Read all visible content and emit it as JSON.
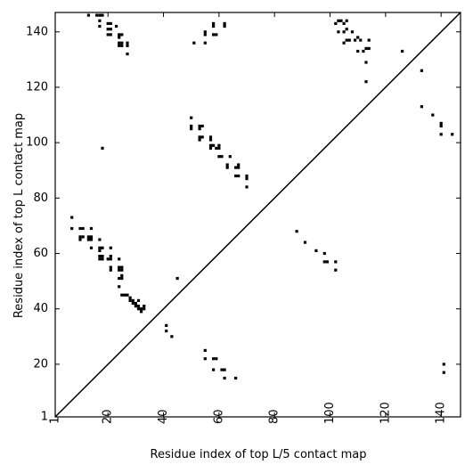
{
  "chart_data": {
    "type": "scatter",
    "title": "",
    "xlabel": "Residue index of top L/5 contact map",
    "ylabel": "Residue index of top L contact map",
    "xlim": [
      1,
      147
    ],
    "ylim": [
      1,
      147
    ],
    "xticks": [
      1,
      20,
      40,
      60,
      80,
      100,
      120,
      140
    ],
    "yticks": [
      1,
      20,
      40,
      60,
      80,
      100,
      120,
      140
    ],
    "x_tick_rotation": -90,
    "diagonal": true,
    "marker": "square",
    "point_color": "#000000",
    "upper_points": [
      [
        102,
        143
      ],
      [
        103,
        144
      ],
      [
        104,
        144
      ],
      [
        105,
        143
      ],
      [
        106,
        144
      ],
      [
        106,
        141
      ],
      [
        105,
        140
      ],
      [
        103,
        140
      ],
      [
        108,
        140
      ],
      [
        110,
        138
      ],
      [
        109,
        137
      ],
      [
        111,
        137
      ],
      [
        106,
        137
      ],
      [
        105,
        136
      ],
      [
        107,
        137
      ],
      [
        114,
        137
      ],
      [
        113,
        134
      ],
      [
        114,
        134
      ],
      [
        112,
        133
      ],
      [
        110,
        133
      ],
      [
        113,
        129
      ],
      [
        126,
        133
      ],
      [
        133,
        126
      ],
      [
        113,
        122
      ],
      [
        133,
        113
      ],
      [
        137,
        110
      ],
      [
        140,
        107
      ],
      [
        140,
        106
      ],
      [
        144,
        103
      ],
      [
        140,
        103
      ],
      [
        88,
        68
      ],
      [
        91,
        64
      ],
      [
        95,
        61
      ],
      [
        98,
        60
      ],
      [
        98,
        57
      ],
      [
        99,
        57
      ],
      [
        102,
        57
      ],
      [
        102,
        54
      ],
      [
        141,
        20
      ],
      [
        141,
        17
      ]
    ],
    "lower_points": [
      [
        13,
        146
      ],
      [
        16,
        146
      ],
      [
        17,
        146
      ],
      [
        18,
        146
      ],
      [
        17,
        144
      ],
      [
        17,
        142
      ],
      [
        20,
        143
      ],
      [
        21,
        143
      ],
      [
        20,
        141
      ],
      [
        21,
        141
      ],
      [
        23,
        142
      ],
      [
        20,
        139
      ],
      [
        21,
        139
      ],
      [
        24,
        139
      ],
      [
        25,
        139
      ],
      [
        24,
        138
      ],
      [
        24,
        136
      ],
      [
        25,
        136
      ],
      [
        24,
        135
      ],
      [
        25,
        135
      ],
      [
        27,
        136
      ],
      [
        27,
        135
      ],
      [
        27,
        132
      ],
      [
        51,
        136
      ],
      [
        55,
        136
      ],
      [
        55,
        140
      ],
      [
        55,
        139
      ],
      [
        58,
        143
      ],
      [
        58,
        142
      ],
      [
        58,
        139
      ],
      [
        59,
        139
      ],
      [
        62,
        143
      ],
      [
        62,
        142
      ],
      [
        18,
        98
      ],
      [
        50,
        109
      ],
      [
        50,
        106
      ],
      [
        50,
        105
      ],
      [
        53,
        106
      ],
      [
        54,
        106
      ],
      [
        53,
        105
      ],
      [
        53,
        102
      ],
      [
        54,
        102
      ],
      [
        53,
        101
      ],
      [
        57,
        102
      ],
      [
        57,
        101
      ],
      [
        57,
        99
      ],
      [
        58,
        99
      ],
      [
        57,
        98
      ],
      [
        60,
        99
      ],
      [
        60,
        98
      ],
      [
        59,
        98
      ],
      [
        60,
        95
      ],
      [
        61,
        95
      ],
      [
        64,
        95
      ],
      [
        63,
        92
      ],
      [
        63,
        91
      ],
      [
        67,
        92
      ],
      [
        66,
        91
      ],
      [
        67,
        91
      ],
      [
        66,
        88
      ],
      [
        67,
        88
      ],
      [
        70,
        88
      ],
      [
        70,
        87
      ],
      [
        70,
        84
      ],
      [
        7,
        73
      ],
      [
        7,
        69
      ],
      [
        10,
        69
      ],
      [
        11,
        69
      ],
      [
        14,
        69
      ],
      [
        10,
        66
      ],
      [
        11,
        66
      ],
      [
        10,
        65
      ],
      [
        13,
        66
      ],
      [
        14,
        66
      ],
      [
        14,
        65
      ],
      [
        13,
        65
      ],
      [
        17,
        65
      ],
      [
        14,
        62
      ],
      [
        17,
        62
      ],
      [
        18,
        62
      ],
      [
        17,
        61
      ],
      [
        17,
        59
      ],
      [
        18,
        59
      ],
      [
        18,
        58
      ],
      [
        17,
        58
      ],
      [
        21,
        62
      ],
      [
        21,
        59
      ],
      [
        20,
        58
      ],
      [
        21,
        58
      ],
      [
        21,
        55
      ],
      [
        21,
        54
      ],
      [
        24,
        58
      ],
      [
        24,
        55
      ],
      [
        25,
        55
      ],
      [
        24,
        54
      ],
      [
        25,
        54
      ],
      [
        25,
        52
      ],
      [
        24,
        51
      ],
      [
        25,
        51
      ],
      [
        24,
        48
      ],
      [
        25,
        45
      ],
      [
        26,
        45
      ],
      [
        27,
        45
      ],
      [
        28,
        44
      ],
      [
        28,
        43
      ],
      [
        29,
        43
      ],
      [
        29,
        42
      ],
      [
        30,
        42
      ],
      [
        31,
        43
      ],
      [
        30,
        41
      ],
      [
        31,
        41
      ],
      [
        31,
        40
      ],
      [
        32,
        40
      ],
      [
        33,
        41
      ],
      [
        33,
        40
      ],
      [
        32,
        39
      ],
      [
        45,
        51
      ],
      [
        41,
        34
      ],
      [
        41,
        32
      ],
      [
        43,
        30
      ],
      [
        55,
        25
      ],
      [
        55,
        22
      ],
      [
        58,
        22
      ],
      [
        59,
        22
      ],
      [
        58,
        18
      ],
      [
        61,
        18
      ],
      [
        62,
        18
      ],
      [
        62,
        15
      ],
      [
        66,
        15
      ]
    ]
  }
}
